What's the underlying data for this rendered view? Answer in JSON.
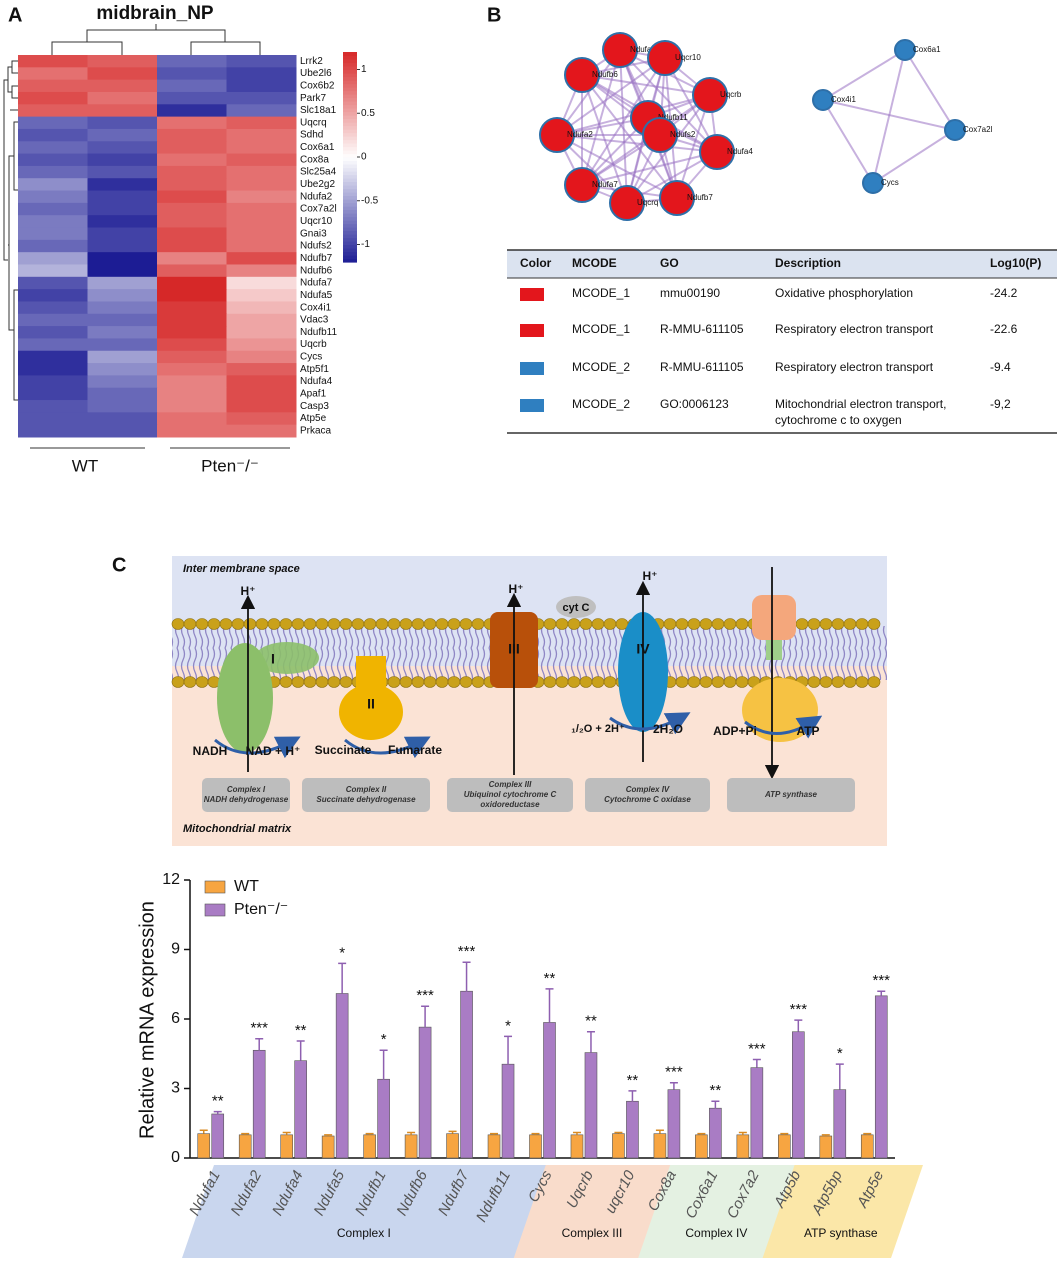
{
  "panels": [
    "A",
    "B",
    "C"
  ],
  "heatmap": {
    "title": "midbrain_NP",
    "groups": [
      "WT",
      "Pten⁻/⁻"
    ],
    "genes": [
      "Lrrk2",
      "Ube2l6",
      "Cox6b2",
      "Park7",
      "Slc18a1",
      "Uqcrq",
      "Sdhd",
      "Cox6a1",
      "Cox8a",
      "Slc25a4",
      "Ube2g2",
      "Ndufa2",
      "Cox7a2l",
      "Uqcr10",
      "Gnai3",
      "Ndufs2",
      "Ndufb7",
      "Ndufb6",
      "Ndufa7",
      "Ndufa5",
      "Cox4i1",
      "Vdac3",
      "Ndufb11",
      "Uqcrb",
      "Cycs",
      "Atp5f1",
      "Ndufa4",
      "Apaf1",
      "Casp3",
      "Atp5e",
      "Prkaca"
    ],
    "values": [
      [
        1.0,
        0.9,
        -0.8,
        -0.9
      ],
      [
        0.8,
        1.0,
        -0.9,
        -1.0
      ],
      [
        0.9,
        0.9,
        -0.8,
        -1.0
      ],
      [
        1.0,
        0.8,
        -0.9,
        -0.9
      ],
      [
        0.9,
        0.9,
        -1.1,
        -0.8
      ],
      [
        -0.8,
        -0.9,
        0.8,
        0.9
      ],
      [
        -0.9,
        -0.8,
        0.9,
        0.8
      ],
      [
        -0.8,
        -0.9,
        0.9,
        0.8
      ],
      [
        -0.9,
        -1.0,
        0.8,
        0.9
      ],
      [
        -0.8,
        -0.9,
        0.9,
        0.8
      ],
      [
        -0.6,
        -1.1,
        0.9,
        0.8
      ],
      [
        -0.7,
        -1.0,
        1.0,
        0.7
      ],
      [
        -0.8,
        -1.0,
        0.9,
        0.8
      ],
      [
        -0.7,
        -1.1,
        0.9,
        0.8
      ],
      [
        -0.7,
        -1.0,
        1.0,
        0.8
      ],
      [
        -0.8,
        -1.0,
        1.0,
        0.8
      ],
      [
        -0.5,
        -1.2,
        0.7,
        1.0
      ],
      [
        -0.4,
        -1.2,
        0.9,
        0.7
      ],
      [
        -0.9,
        -0.5,
        1.2,
        0.2
      ],
      [
        -1.0,
        -0.6,
        1.2,
        0.3
      ],
      [
        -0.9,
        -0.7,
        1.1,
        0.4
      ],
      [
        -0.8,
        -0.8,
        1.1,
        0.5
      ],
      [
        -0.9,
        -0.7,
        1.1,
        0.5
      ],
      [
        -0.8,
        -0.8,
        1.0,
        0.6
      ],
      [
        -1.1,
        -0.5,
        0.9,
        0.7
      ],
      [
        -1.1,
        -0.6,
        0.8,
        0.9
      ],
      [
        -1.0,
        -0.7,
        0.7,
        1.0
      ],
      [
        -1.0,
        -0.8,
        0.7,
        1.0
      ],
      [
        -0.9,
        -0.8,
        0.7,
        1.0
      ],
      [
        -0.9,
        -0.9,
        0.8,
        0.9
      ],
      [
        -0.9,
        -0.9,
        0.8,
        0.8
      ]
    ],
    "colorbar_lim": [
      -1.2,
      1.2
    ],
    "colorbar_ticks": [
      1,
      0.5,
      0,
      -0.5,
      -1
    ],
    "colors": [
      "#1c1c94",
      "#ffffff",
      "#d62828"
    ]
  },
  "network": {
    "clusters": [
      {
        "color": "#e3161c",
        "nodes": [
          "Ndufa5",
          "Uqcr10",
          "Ndufb6",
          "Uqcrb",
          "Ndufb11",
          "Ndufa2",
          "Ndufs2",
          "Ndufa4",
          "Ndufa7",
          "Uqcrq",
          "Ndufb7"
        ]
      },
      {
        "color": "#2f7fc0",
        "nodes": [
          "Cox6a1",
          "Cox4i1",
          "Cox7a2l",
          "Cycs"
        ]
      }
    ]
  },
  "table": {
    "header": [
      "Color",
      "MCODE",
      "GO",
      "Description",
      "Log10(P)"
    ],
    "rows": [
      {
        "color": "#e3161c",
        "cells": [
          "MCODE_1",
          "mmu00190",
          "Oxidative phosphorylation",
          "-24.2"
        ]
      },
      {
        "color": "#e3161c",
        "cells": [
          "MCODE_1",
          "R-MMU-611105",
          "Respiratory electron transport",
          "-22.6"
        ]
      },
      {
        "color": "#2f7fc0",
        "cells": [
          "MCODE_2",
          "R-MMU-611105",
          "Respiratory electron transport",
          "-9.4"
        ]
      },
      {
        "color": "#2f7fc0",
        "cells": [
          "MCODE_2",
          "GO:0006123",
          "Mitochondrial electron transport, cytochrome c to oxygen",
          "-9,2"
        ]
      }
    ]
  },
  "diagram": {
    "top_label": "Inter membrane space",
    "bottom_label": "Mitochondrial matrix",
    "proton": "H⁺",
    "cyt": "cyt C",
    "numerals": [
      "I",
      "II",
      "III",
      "IV"
    ],
    "substrates": [
      "NADH",
      "NAD + H⁺",
      "Succinate",
      "Fumarate",
      "₁/₂O + 2H⁺",
      "2H₂O",
      "ADP+Pi",
      "ATP"
    ],
    "complexes": [
      [
        "Complex I",
        "NADH dehydrogenase"
      ],
      [
        "Complex II",
        "Succinate dehydrogenase"
      ],
      [
        "Complex III",
        "Ubiquinol cytochrome C",
        "oxidoreductase"
      ],
      [
        "Complex IV",
        "Cytochrome C oxidase"
      ],
      [
        "ATP synthase"
      ]
    ]
  },
  "chart_data": {
    "type": "bar",
    "ylabel": "Relative mRNA expression",
    "categories": [
      "Ndufa1",
      "Ndufa2",
      "Ndufa4",
      "Ndufa5",
      "Ndufb1",
      "Ndufb6",
      "Ndufb7",
      "Ndufb11",
      "Cycs",
      "Uqcrb",
      "uqcr10",
      "Cox8a",
      "Cox6a1",
      "Cox7a2",
      "Atp5b",
      "Atp5bp",
      "Atp5e"
    ],
    "series": [
      {
        "name": "WT",
        "color": "#f7a541",
        "values": [
          1.05,
          1.0,
          1.0,
          0.95,
          1.0,
          1.0,
          1.05,
          1.0,
          1.0,
          1.0,
          1.05,
          1.05,
          1.0,
          1.0,
          1.0,
          0.95,
          1.0
        ],
        "errors": [
          0.15,
          0.05,
          0.1,
          0.05,
          0.05,
          0.1,
          0.1,
          0.05,
          0.05,
          0.1,
          0.05,
          0.15,
          0.05,
          0.1,
          0.05,
          0.05,
          0.05
        ]
      },
      {
        "name": "Pten⁻/⁻",
        "color": "#a97cc4",
        "values": [
          1.9,
          4.65,
          4.2,
          7.1,
          3.4,
          5.65,
          7.2,
          4.05,
          5.85,
          4.55,
          2.45,
          2.95,
          2.15,
          3.9,
          5.45,
          2.95,
          7.0
        ],
        "errors": [
          0.1,
          0.5,
          0.85,
          1.3,
          1.25,
          0.9,
          1.25,
          1.2,
          1.45,
          0.9,
          0.45,
          0.3,
          0.3,
          0.35,
          0.5,
          1.1,
          0.2
        ]
      }
    ],
    "significance": [
      "**",
      "***",
      "**",
      "*",
      "*",
      "***",
      "***",
      "*",
      "**",
      "**",
      "**",
      "***",
      "**",
      "***",
      "***",
      "*",
      "***"
    ],
    "groups": [
      {
        "name": "Complex I",
        "color": "#c9d6ee"
      },
      {
        "name": "Complex III",
        "color": "#f9dccb"
      },
      {
        "name": "Complex IV",
        "color": "#e4f1e2"
      },
      {
        "name": "ATP  synthase",
        "color": "#fbe7a8"
      }
    ],
    "ylim": [
      0,
      12
    ],
    "yticks": [
      0,
      3,
      6,
      9,
      12
    ]
  }
}
